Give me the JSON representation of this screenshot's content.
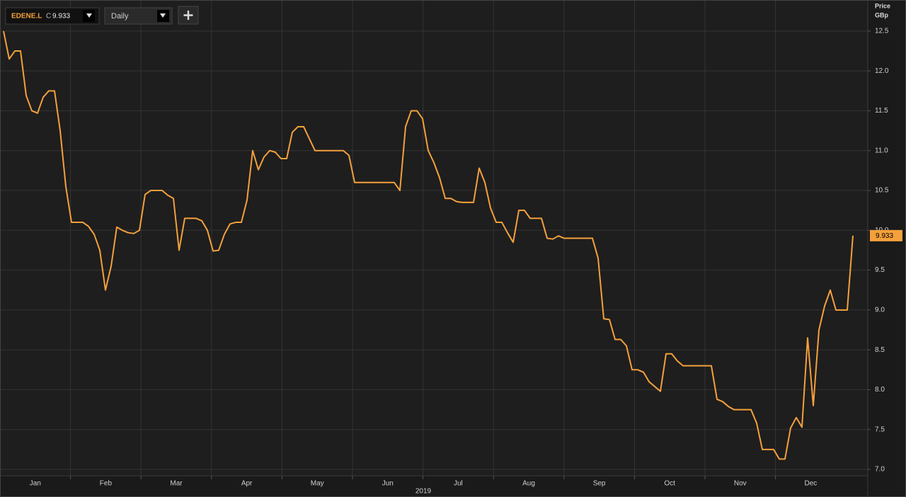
{
  "chart_data": {
    "type": "line",
    "close_label": "C",
    "interval": "Daily",
    "y_axis_label": "Price",
    "y_axis_unit": "GBp",
    "months": [
      "Jan",
      "Feb",
      "Mar",
      "Apr",
      "May",
      "Jun",
      "Jul",
      "Aug",
      "Sep",
      "Oct",
      "Nov",
      "Dec"
    ],
    "year": "2019",
    "ylim": [
      6.92,
      12.89
    ],
    "yticks": [
      {
        "value": 7,
        "label": "7.0"
      },
      7.5,
      {
        "value": 8,
        "label": "8.0"
      },
      8.5,
      {
        "value": 9,
        "label": "9.0"
      },
      9.5,
      {
        "value": 10,
        "label": "10.0"
      },
      10.5,
      {
        "value": 11,
        "label": "11.0"
      },
      11.5,
      {
        "value": 12,
        "label": "12.0"
      },
      12.5
    ],
    "grid": true,
    "series": [
      {
        "name": "EDENE.L",
        "color": "#f5a03c",
        "values": [
          12.5,
          12.15,
          12.25,
          12.25,
          11.69,
          11.5,
          11.47,
          11.67,
          11.75,
          11.75,
          11.25,
          10.55,
          10.1,
          10.1,
          10.1,
          10.05,
          9.95,
          9.75,
          9.25,
          9.55,
          10.04,
          10.0,
          9.97,
          9.96,
          10.0,
          10.45,
          10.5,
          10.5,
          10.5,
          10.44,
          10.4,
          9.75,
          10.15,
          10.15,
          10.15,
          10.12,
          10.0,
          9.74,
          9.75,
          9.95,
          10.08,
          10.1,
          10.1,
          10.38,
          11.0,
          10.76,
          10.92,
          11.0,
          10.98,
          10.9,
          10.9,
          11.23,
          11.3,
          11.3,
          11.15,
          11.0,
          11.0,
          11.0,
          11.0,
          11.0,
          11.0,
          10.94,
          10.6,
          10.6,
          10.6,
          10.6,
          10.6,
          10.6,
          10.6,
          10.6,
          10.5,
          11.3,
          11.5,
          11.5,
          11.4,
          11.0,
          10.85,
          10.66,
          10.4,
          10.4,
          10.36,
          10.35,
          10.35,
          10.35,
          10.78,
          10.6,
          10.28,
          10.1,
          10.1,
          9.97,
          9.85,
          10.25,
          10.25,
          10.15,
          10.15,
          10.15,
          9.9,
          9.89,
          9.93,
          9.9,
          9.9,
          9.9,
          9.9,
          9.9,
          9.9,
          9.65,
          8.89,
          8.88,
          8.63,
          8.63,
          8.55,
          8.25,
          8.25,
          8.22,
          8.1,
          8.04,
          7.98,
          8.45,
          8.45,
          8.36,
          8.3,
          8.3,
          8.3,
          8.3,
          8.3,
          8.3,
          7.88,
          7.85,
          7.79,
          7.75,
          7.75,
          7.75,
          7.75,
          7.58,
          7.25,
          7.25,
          7.25,
          7.13,
          7.13,
          7.52,
          7.65,
          7.53,
          8.65,
          7.8,
          8.75,
          9.05,
          9.25,
          9.0,
          9.0,
          9.0,
          9.933
        ]
      }
    ]
  }
}
